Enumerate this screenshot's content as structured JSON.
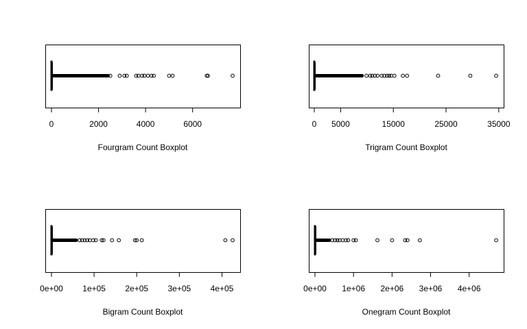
{
  "chart_data": [
    {
      "type": "boxplot",
      "orientation": "horizontal",
      "xlabel": "Fourgram Count Boxplot",
      "xlim": [
        0,
        7700
      ],
      "ticks": [
        {
          "value": 0,
          "label": "0"
        },
        {
          "value": 2000,
          "label": "2000"
        },
        {
          "value": 4000,
          "label": "4000"
        },
        {
          "value": 6000,
          "label": "6000"
        }
      ],
      "box": {
        "min": 0,
        "q1": 1,
        "median": 1,
        "q3": 2,
        "whisker_high": 4
      },
      "outlier_band": [
        5,
        2480
      ],
      "outliers": [
        2500,
        2900,
        3100,
        3200,
        3600,
        3700,
        3850,
        3950,
        4100,
        4250,
        4350,
        5000,
        5150,
        6600,
        6650,
        7700
      ]
    },
    {
      "type": "boxplot",
      "orientation": "horizontal",
      "xlabel": "Trigram Count Boxplot",
      "xlim": [
        0,
        34500
      ],
      "ticks": [
        {
          "value": 0,
          "label": "0"
        },
        {
          "value": 5000,
          "label": "5000"
        },
        {
          "value": 15000,
          "label": "15000"
        },
        {
          "value": 25000,
          "label": "25000"
        },
        {
          "value": 35000,
          "label": "35000"
        }
      ],
      "box": {
        "min": 0,
        "q1": 1,
        "median": 2,
        "q3": 4,
        "whisker_high": 8
      },
      "outlier_band": [
        10,
        9400
      ],
      "outliers": [
        9900,
        10600,
        11000,
        11500,
        12000,
        12800,
        13300,
        13800,
        14200,
        14600,
        15200,
        16800,
        17600,
        23500,
        29600,
        34500
      ]
    },
    {
      "type": "boxplot",
      "orientation": "horizontal",
      "xlabel": "Bigram Count Boxplot",
      "xlim": [
        0,
        425000
      ],
      "ticks": [
        {
          "value": 0,
          "label": "0e+00"
        },
        {
          "value": 100000,
          "label": "1e+05"
        },
        {
          "value": 200000,
          "label": "2e+05"
        },
        {
          "value": 300000,
          "label": "3e+05"
        },
        {
          "value": 400000,
          "label": "4e+05"
        }
      ],
      "box": {
        "min": 0,
        "q1": 1,
        "median": 3,
        "q3": 8,
        "whisker_high": 20
      },
      "outlier_band": [
        25,
        62000
      ],
      "outliers": [
        66000,
        72000,
        78000,
        84000,
        90000,
        98000,
        104000,
        118000,
        122000,
        142000,
        158000,
        196000,
        200000,
        212000,
        408000,
        425000
      ]
    },
    {
      "type": "boxplot",
      "orientation": "horizontal",
      "xlabel": "Onegram Count Boxplot",
      "xlim": [
        0,
        4700000
      ],
      "ticks": [
        {
          "value": 0,
          "label": "0e+00"
        },
        {
          "value": 1000000,
          "label": "1e+06"
        },
        {
          "value": 2000000,
          "label": "2e+06"
        },
        {
          "value": 3000000,
          "label": "3e+06"
        },
        {
          "value": 4000000,
          "label": "4e+06"
        }
      ],
      "box": {
        "min": 0,
        "q1": 2,
        "median": 6,
        "q3": 20,
        "whisker_high": 50
      },
      "outlier_band": [
        60,
        420000
      ],
      "outliers": [
        450000,
        520000,
        580000,
        640000,
        720000,
        800000,
        860000,
        1000000,
        1060000,
        1620000,
        2000000,
        2340000,
        2400000,
        2720000,
        4700000
      ]
    }
  ]
}
